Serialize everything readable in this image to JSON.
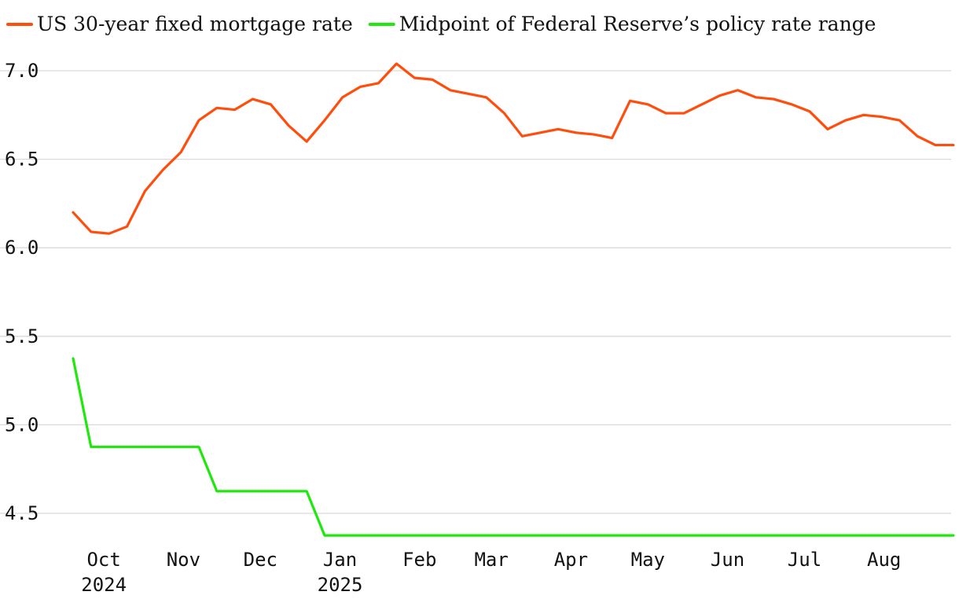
{
  "chart_data": {
    "type": "line",
    "legend": {
      "placement": "top-left"
    },
    "grid": true,
    "ylim": [
      4.35,
      7.1
    ],
    "yticks": [
      {
        "value": 7.0,
        "label": "7.0"
      },
      {
        "value": 6.5,
        "label": "6.5"
      },
      {
        "value": 6.0,
        "label": "6.0"
      },
      {
        "value": 5.5,
        "label": "5.5"
      },
      {
        "value": 5.0,
        "label": "5.0"
      },
      {
        "value": 4.5,
        "label": "4.5"
      }
    ],
    "xlim": [
      "2024-09-19",
      "2025-08-21"
    ],
    "xticks": [
      {
        "date": "2024-10-01",
        "label": "Oct",
        "year": "2024"
      },
      {
        "date": "2024-11-01",
        "label": "Nov",
        "year": ""
      },
      {
        "date": "2024-12-01",
        "label": "Dec",
        "year": ""
      },
      {
        "date": "2025-01-01",
        "label": "Jan",
        "year": "2025"
      },
      {
        "date": "2025-02-01",
        "label": "Feb",
        "year": ""
      },
      {
        "date": "2025-03-01",
        "label": "Mar",
        "year": ""
      },
      {
        "date": "2025-04-01",
        "label": "Apr",
        "year": ""
      },
      {
        "date": "2025-05-01",
        "label": "May",
        "year": ""
      },
      {
        "date": "2025-06-01",
        "label": "Jun",
        "year": ""
      },
      {
        "date": "2025-07-01",
        "label": "Jul",
        "year": ""
      },
      {
        "date": "2025-08-01",
        "label": "Aug",
        "year": ""
      }
    ],
    "series": [
      {
        "name": "US 30-year fixed mortgage rate",
        "color": "#ff4d0d",
        "points": [
          [
            "2024-09-19",
            6.2
          ],
          [
            "2024-09-26",
            6.09
          ],
          [
            "2024-10-03",
            6.08
          ],
          [
            "2024-10-10",
            6.12
          ],
          [
            "2024-10-17",
            6.32
          ],
          [
            "2024-10-24",
            6.44
          ],
          [
            "2024-10-31",
            6.54
          ],
          [
            "2024-11-07",
            6.72
          ],
          [
            "2024-11-14",
            6.79
          ],
          [
            "2024-11-21",
            6.78
          ],
          [
            "2024-11-28",
            6.84
          ],
          [
            "2024-12-05",
            6.81
          ],
          [
            "2024-12-12",
            6.69
          ],
          [
            "2024-12-19",
            6.6
          ],
          [
            "2024-12-26",
            6.72
          ],
          [
            "2025-01-02",
            6.85
          ],
          [
            "2025-01-09",
            6.91
          ],
          [
            "2025-01-16",
            6.93
          ],
          [
            "2025-01-23",
            7.04
          ],
          [
            "2025-01-30",
            6.96
          ],
          [
            "2025-02-06",
            6.95
          ],
          [
            "2025-02-13",
            6.89
          ],
          [
            "2025-02-20",
            6.87
          ],
          [
            "2025-02-27",
            6.85
          ],
          [
            "2025-03-06",
            6.76
          ],
          [
            "2025-03-13",
            6.63
          ],
          [
            "2025-03-20",
            6.65
          ],
          [
            "2025-03-27",
            6.67
          ],
          [
            "2025-04-03",
            6.65
          ],
          [
            "2025-04-10",
            6.64
          ],
          [
            "2025-04-17",
            6.62
          ],
          [
            "2025-04-24",
            6.83
          ],
          [
            "2025-05-01",
            6.81
          ],
          [
            "2025-05-08",
            6.76
          ],
          [
            "2025-05-15",
            6.76
          ],
          [
            "2025-05-22",
            6.81
          ],
          [
            "2025-05-29",
            6.86
          ],
          [
            "2025-06-05",
            6.89
          ],
          [
            "2025-06-12",
            6.85
          ],
          [
            "2025-06-19",
            6.84
          ],
          [
            "2025-06-26",
            6.81
          ],
          [
            "2025-07-03",
            6.77
          ],
          [
            "2025-07-10",
            6.67
          ],
          [
            "2025-07-17",
            6.72
          ],
          [
            "2025-07-24",
            6.75
          ],
          [
            "2025-07-31",
            6.74
          ],
          [
            "2025-08-07",
            6.72
          ],
          [
            "2025-08-14",
            6.63
          ],
          [
            "2025-08-21",
            6.58
          ],
          [
            "2025-08-28",
            6.58
          ]
        ]
      },
      {
        "name": "Midpoint of Federal Reserve’s policy rate range",
        "color": "#1ee80c",
        "points": [
          [
            "2024-09-19",
            5.375
          ],
          [
            "2024-09-26",
            4.875
          ],
          [
            "2024-11-07",
            4.875
          ],
          [
            "2024-11-14",
            4.625
          ],
          [
            "2024-12-19",
            4.625
          ],
          [
            "2024-12-26",
            4.375
          ],
          [
            "2025-08-28",
            4.375
          ]
        ]
      }
    ]
  }
}
